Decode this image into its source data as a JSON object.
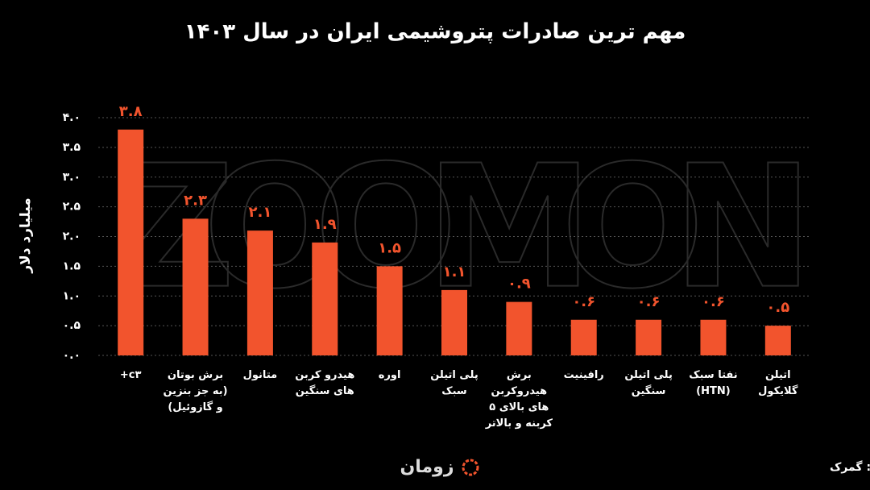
{
  "chart_data": {
    "type": "bar",
    "title": "مهم ترین صادرات پتروشیمی ایران در سال ۱۴۰۳",
    "y_label": "میلیارد دلار",
    "watermark": "ZOOMON",
    "source": "منبع: گمرک",
    "logo": "زومان",
    "categories": [
      "c۳+",
      "برش بوتان (به جز بنزین و گازوئیل)",
      "متانول",
      "هیدرو کربن های سنگین",
      "اوره",
      "پلی اتیلن سبک",
      "برش هیدروکربن های بالای ۵ کربنه و بالاتر",
      "رافینیت",
      "پلی اتیلن سنگین",
      "نفتا سبک (HTN)",
      "اتیلن گلایکول"
    ],
    "values": [
      3.8,
      2.3,
      2.1,
      1.9,
      1.5,
      1.1,
      0.9,
      0.6,
      0.6,
      0.6,
      0.5
    ],
    "value_labels": [
      "۳.۸",
      "۲.۳",
      "۲.۱",
      "۱.۹",
      "۱.۵",
      "۱.۱",
      "۰.۹",
      "۰.۶",
      "۰.۶",
      "۰.۶",
      "۰.۵"
    ],
    "color": "#f2542d",
    "ylim": [
      0,
      4
    ],
    "yticks": [
      {
        "value": 0,
        "label": "۰.۰"
      },
      {
        "value": 0.5,
        "label": "۰.۵"
      },
      {
        "value": 1,
        "label": "۱.۰"
      },
      {
        "value": 1.5,
        "label": "۱.۵"
      },
      {
        "value": 2,
        "label": "۲.۰"
      },
      {
        "value": 2.5,
        "label": "۲.۵"
      },
      {
        "value": 3,
        "label": "۳.۰"
      },
      {
        "value": 3.5,
        "label": "۳.۵"
      },
      {
        "value": 4,
        "label": "۴.۰"
      }
    ],
    "grid": true
  }
}
